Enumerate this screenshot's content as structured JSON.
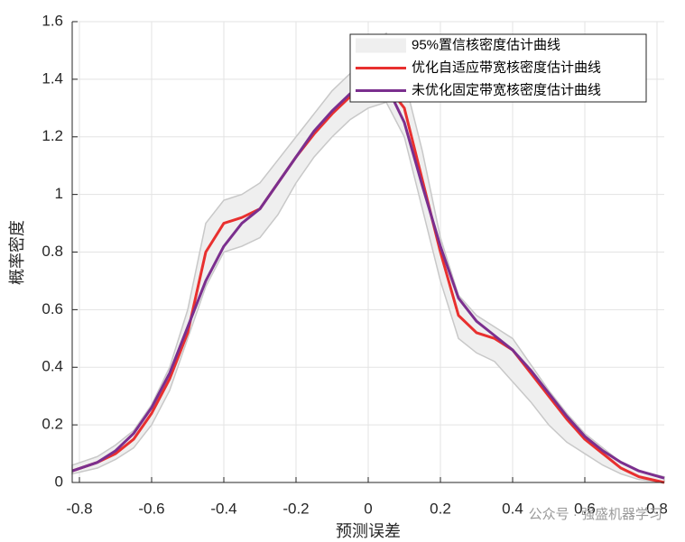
{
  "chart_data": {
    "type": "line",
    "xlabel": "预测误差",
    "ylabel": "概率密度",
    "watermark": "公众号 · 强盛机器学习",
    "xlim": [
      -0.82,
      0.82
    ],
    "ylim": [
      0,
      1.6
    ],
    "xticks": [
      -0.8,
      -0.6,
      -0.4,
      -0.2,
      0,
      0.2,
      0.4,
      0.6,
      0.8
    ],
    "yticks": [
      0,
      0.2,
      0.4,
      0.6,
      0.8,
      1,
      1.2,
      1.4,
      1.6
    ],
    "grid": true,
    "legend": "upper right",
    "x": [
      -0.82,
      -0.75,
      -0.7,
      -0.65,
      -0.6,
      -0.55,
      -0.5,
      -0.45,
      -0.4,
      -0.35,
      -0.3,
      -0.25,
      -0.2,
      -0.15,
      -0.1,
      -0.05,
      0,
      0.05,
      0.1,
      0.15,
      0.2,
      0.25,
      0.3,
      0.35,
      0.4,
      0.45,
      0.5,
      0.55,
      0.6,
      0.65,
      0.7,
      0.75,
      0.82
    ],
    "series": [
      {
        "name": "95%置信核密度估计曲线",
        "color": "#efefef",
        "band": true,
        "upper": [
          0.06,
          0.09,
          0.13,
          0.18,
          0.27,
          0.4,
          0.6,
          0.9,
          0.98,
          1.0,
          1.04,
          1.12,
          1.2,
          1.28,
          1.36,
          1.42,
          1.5,
          1.56,
          1.4,
          1.15,
          0.85,
          0.65,
          0.58,
          0.54,
          0.5,
          0.41,
          0.32,
          0.24,
          0.17,
          0.12,
          0.07,
          0.04,
          0.02
        ],
        "lower": [
          0.03,
          0.05,
          0.08,
          0.12,
          0.2,
          0.32,
          0.5,
          0.68,
          0.8,
          0.82,
          0.85,
          0.93,
          1.04,
          1.13,
          1.2,
          1.26,
          1.3,
          1.32,
          1.2,
          0.95,
          0.7,
          0.5,
          0.45,
          0.42,
          0.35,
          0.28,
          0.2,
          0.14,
          0.1,
          0.06,
          0.03,
          0.01,
          0
        ]
      },
      {
        "name": "优化自适应带宽核密度估计曲线",
        "color": "#e8302f",
        "values": [
          0.04,
          0.07,
          0.1,
          0.15,
          0.24,
          0.36,
          0.52,
          0.8,
          0.9,
          0.92,
          0.95,
          1.04,
          1.13,
          1.21,
          1.28,
          1.34,
          1.37,
          1.38,
          1.3,
          1.05,
          0.8,
          0.58,
          0.52,
          0.5,
          0.46,
          0.38,
          0.3,
          0.22,
          0.15,
          0.1,
          0.05,
          0.02,
          0
        ]
      },
      {
        "name": "未优化固定带宽核密度估计曲线",
        "color": "#7b2f8e",
        "values": [
          0.04,
          0.07,
          0.11,
          0.17,
          0.26,
          0.38,
          0.54,
          0.7,
          0.82,
          0.9,
          0.95,
          1.04,
          1.13,
          1.22,
          1.29,
          1.35,
          1.38,
          1.38,
          1.25,
          1.03,
          0.82,
          0.64,
          0.56,
          0.51,
          0.46,
          0.39,
          0.31,
          0.23,
          0.16,
          0.11,
          0.07,
          0.04,
          0.015
        ]
      }
    ]
  }
}
